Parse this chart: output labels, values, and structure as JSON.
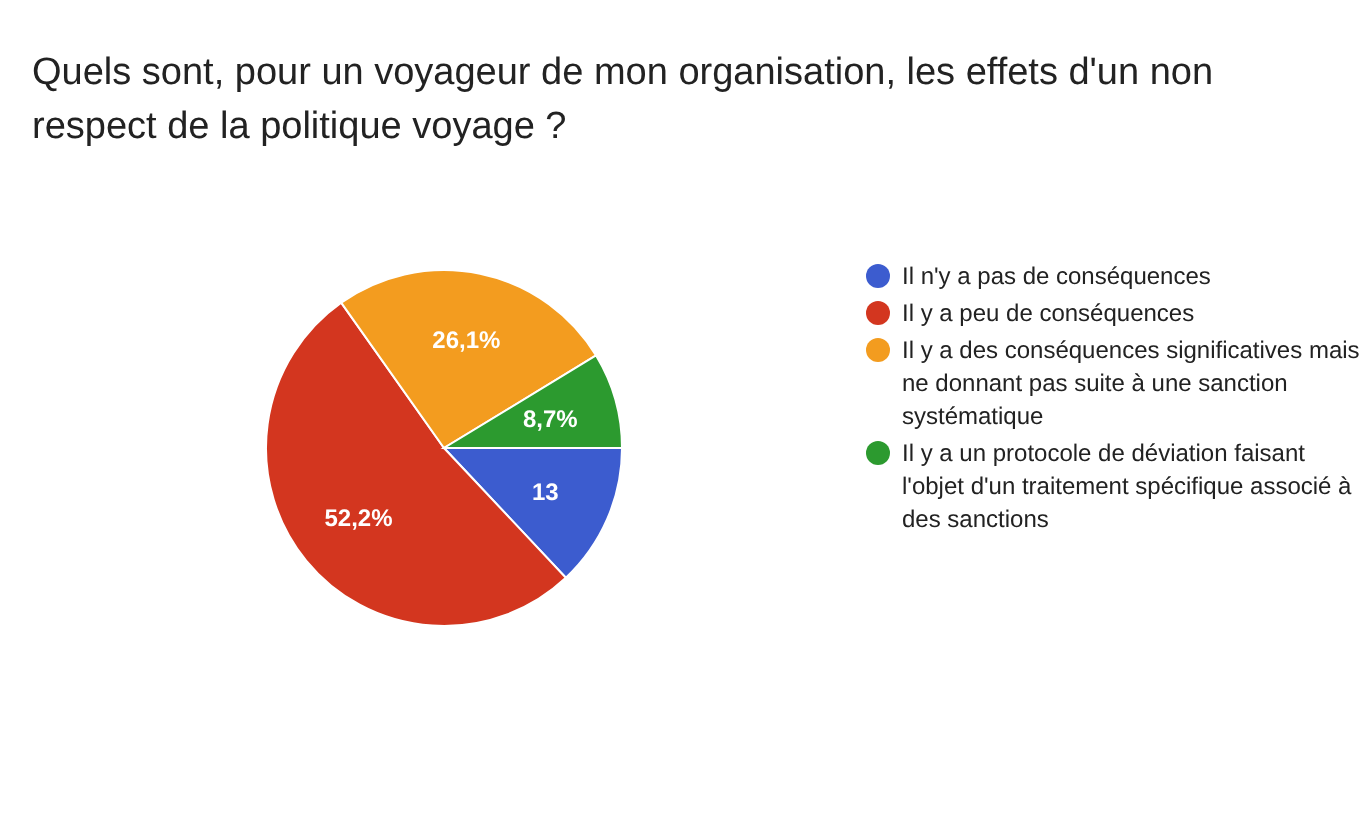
{
  "chart_data": {
    "type": "pie",
    "title": "Quels sont, pour un voyageur de mon organisation, les effets d'un non respect de la politique voyage ?",
    "categories": [
      "Il n'y a pas de conséquences",
      "Il y a peu de conséquences",
      "Il y a des conséquences significatives mais ne donnant pas suite à une sanction systématique",
      "Il y a un protocole de déviation faisant l'objet d'un traitement spécifique associé à des sanctions"
    ],
    "values": [
      13,
      52.2,
      26.1,
      8.7
    ],
    "value_labels": [
      "13",
      "52,2%",
      "26,1%",
      "8,7%"
    ],
    "colors": [
      "#3c5ccf",
      "#d3361f",
      "#f39c1f",
      "#2c9a2f"
    ],
    "legend": "right"
  }
}
